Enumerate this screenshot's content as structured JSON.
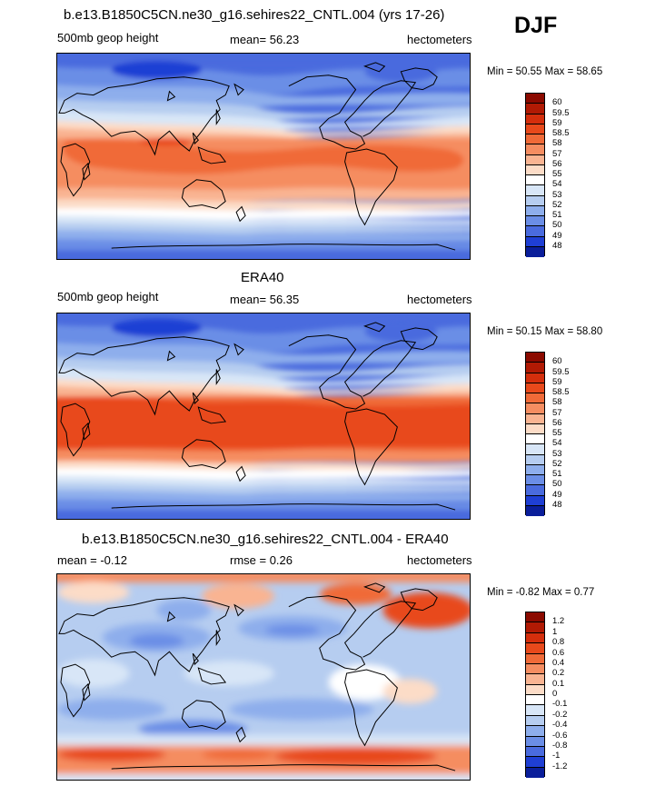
{
  "header": {
    "season": "DJF"
  },
  "panel1": {
    "title": "b.e13.B1850C5CN.ne30_g16.sehires22_CNTL.004 (yrs 17-26)",
    "left": "500mb geop height",
    "center": "mean=  56.23",
    "right": "hectometers",
    "minmax": "Min =  50.55 Max =  58.65"
  },
  "panel2": {
    "title": "ERA40",
    "left": "500mb geop height",
    "center": "mean=  56.35",
    "right": "hectometers",
    "minmax": "Min =  50.15 Max =  58.80"
  },
  "panel3": {
    "title": "b.e13.B1850C5CN.ne30_g16.sehires22_CNTL.004 - ERA40",
    "left": "mean =  -0.12",
    "center": "rmse =   0.26",
    "right": "hectometers",
    "minmax": "Min =  -0.82 Max =   0.77"
  },
  "colorbar_abs": {
    "labels": [
      "60",
      "59.5",
      "59",
      "58.5",
      "58",
      "57",
      "56",
      "55",
      "54",
      "53",
      "52",
      "51",
      "50",
      "49",
      "48"
    ],
    "colors": [
      "#8b0a00",
      "#b11a04",
      "#d42e0c",
      "#e8491b",
      "#f06a38",
      "#f58d61",
      "#f9b492",
      "#fcdcc7",
      "#ffffff",
      "#d8e6f7",
      "#b6cdf0",
      "#8eaeec",
      "#6b8ee6",
      "#4a6bde",
      "#1f3fd4",
      "#0a1e9a"
    ]
  },
  "colorbar_diff": {
    "labels": [
      "1.2",
      "1",
      "0.8",
      "0.6",
      "0.4",
      "0.2",
      "0.1",
      "0",
      "-0.1",
      "-0.2",
      "-0.4",
      "-0.6",
      "-0.8",
      "-1",
      "-1.2"
    ],
    "colors": [
      "#8b0a00",
      "#b11a04",
      "#d42e0c",
      "#e8491b",
      "#f06a38",
      "#f58d61",
      "#f9b492",
      "#fcdcc7",
      "#ffffff",
      "#d8e6f7",
      "#b6cdf0",
      "#8eaeec",
      "#6b8ee6",
      "#4a6bde",
      "#1f3fd4",
      "#0a1e9a"
    ]
  }
}
